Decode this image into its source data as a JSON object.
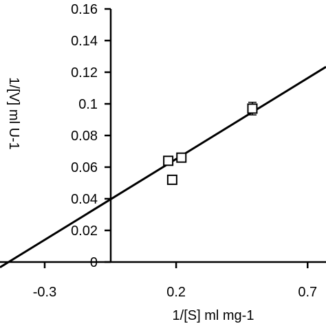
{
  "chart_data": {
    "type": "scatter",
    "title": "",
    "xlabel": "1/[S] ml mg-1",
    "ylabel": "1/[V] ml U-1",
    "xlim": [
      -0.47,
      0.77
    ],
    "ylim": [
      0,
      0.16
    ],
    "x_ticks": [
      {
        "value": -0.3,
        "label": "-0.3"
      },
      {
        "value": 0.2,
        "label": "0.2"
      },
      {
        "value": 0.7,
        "label": "0.7"
      }
    ],
    "y_ticks": [
      {
        "value": 0,
        "label": "0"
      },
      {
        "value": 0.02,
        "label": "0.02"
      },
      {
        "value": 0.04,
        "label": "0.04"
      },
      {
        "value": 0.06,
        "label": "0.06"
      },
      {
        "value": 0.08,
        "label": "0.08"
      },
      {
        "value": 0.1,
        "label": "0.1"
      },
      {
        "value": 0.12,
        "label": "0.12"
      },
      {
        "value": 0.14,
        "label": "0.14"
      },
      {
        "value": 0.16,
        "label": "0.16"
      }
    ],
    "grid": false,
    "legend": "none",
    "colors": {
      "ink": "#000000",
      "background": "#ffffff"
    },
    "series": [
      {
        "marker": "square-open",
        "points": [
          {
            "x": 0.17,
            "y": 0.064,
            "err": 0.002
          },
          {
            "x": 0.185,
            "y": 0.052,
            "err": 0.002
          },
          {
            "x": 0.22,
            "y": 0.066,
            "err": 0.002
          },
          {
            "x": 0.49,
            "y": 0.097,
            "err": 0.004
          }
        ]
      }
    ],
    "fit_line": {
      "slope": 0.1022,
      "intercept": 0.0447
    }
  }
}
